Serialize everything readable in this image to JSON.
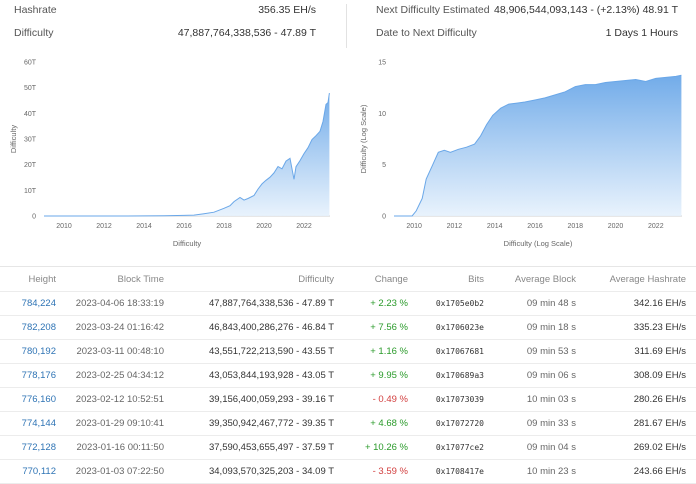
{
  "stats": {
    "hashrate_label": "Hashrate",
    "hashrate_value": "356.35 EH/s",
    "difficulty_label": "Difficulty",
    "difficulty_value": "47,887,764,338,536 - 47.89 T",
    "next_label": "Next Difficulty Estimated",
    "next_value": "48,906,544,093,143 - (+2.13%) 48.91 T",
    "date_label": "Date to Next Difficulty",
    "date_value": "1 Days 1 Hours"
  },
  "colors": {
    "accent": "#2f74b5",
    "area_top": "#6aa7e8",
    "area_bottom": "#e6f1fc",
    "positive": "#2a9a2a",
    "negative": "#d23f3f"
  },
  "chart_data": [
    {
      "type": "area",
      "title": "",
      "xlabel": "Difficulty",
      "ylabel": "Difficulty",
      "xlim": [
        2009,
        2023.3
      ],
      "ylim": [
        0,
        60
      ],
      "y_ticks": [
        0,
        10,
        20,
        30,
        40,
        50,
        60
      ],
      "y_tick_labels": [
        "0",
        "10T",
        "20T",
        "30T",
        "40T",
        "50T",
        "60T"
      ],
      "x_ticks": [
        2010,
        2012,
        2014,
        2016,
        2018,
        2020,
        2022
      ],
      "x_tick_labels": [
        "2010",
        "2012",
        "2014",
        "2016",
        "2018",
        "2020",
        "2022"
      ],
      "grid": false,
      "x": [
        2009,
        2013,
        2014,
        2015,
        2016,
        2016.5,
        2017,
        2017.5,
        2018,
        2018.3,
        2018.5,
        2018.8,
        2019.0,
        2019.2,
        2019.5,
        2019.7,
        2019.9,
        2020.1,
        2020.3,
        2020.5,
        2020.7,
        2020.9,
        2021.1,
        2021.3,
        2021.5,
        2021.6,
        2021.8,
        2022.0,
        2022.2,
        2022.4,
        2022.6,
        2022.8,
        2022.95,
        2023.1,
        2023.2,
        2023.27
      ],
      "y": [
        0,
        0.01,
        0.05,
        0.1,
        0.25,
        0.35,
        0.9,
        1.5,
        3.0,
        4.0,
        5.6,
        7.2,
        6.2,
        6.8,
        8.0,
        10.5,
        12.5,
        13.9,
        15.1,
        16.8,
        19.3,
        18.4,
        21.4,
        22.5,
        14.3,
        19.2,
        21.6,
        24.3,
        26.6,
        29.8,
        31.3,
        33.0,
        36.8,
        43.5,
        44.2,
        47.9
      ]
    },
    {
      "type": "area",
      "title": "",
      "xlabel": "Difficulty (Log Scale)",
      "ylabel": "Difficulty (Log Scale)",
      "xlim": [
        2009,
        2023.3
      ],
      "ylim": [
        0,
        15
      ],
      "y_ticks": [
        0,
        5,
        10,
        15
      ],
      "y_tick_labels": [
        "0",
        "5",
        "10",
        "15"
      ],
      "x_ticks": [
        2010,
        2012,
        2014,
        2016,
        2018,
        2020,
        2022
      ],
      "x_tick_labels": [
        "2010",
        "2012",
        "2014",
        "2016",
        "2018",
        "2020",
        "2022"
      ],
      "grid": false,
      "x": [
        2009,
        2009.9,
        2010.1,
        2010.4,
        2010.6,
        2010.9,
        2011.2,
        2011.5,
        2011.8,
        2012.2,
        2012.6,
        2013.0,
        2013.3,
        2013.6,
        2013.9,
        2014.3,
        2014.7,
        2015.1,
        2015.5,
        2016.0,
        2016.5,
        2017.0,
        2017.5,
        2018.0,
        2018.5,
        2019.0,
        2019.5,
        2020.0,
        2020.5,
        2021.0,
        2021.5,
        2022.0,
        2022.5,
        2023.0,
        2023.27
      ],
      "y": [
        0,
        0,
        0.5,
        1.7,
        3.6,
        4.9,
        6.2,
        6.4,
        6.2,
        6.5,
        6.7,
        7.0,
        7.8,
        8.9,
        9.8,
        10.5,
        10.9,
        11.0,
        11.1,
        11.3,
        11.5,
        11.8,
        12.1,
        12.6,
        12.8,
        12.8,
        13.0,
        13.1,
        13.2,
        13.3,
        13.1,
        13.4,
        13.5,
        13.6,
        13.7
      ]
    }
  ],
  "table": {
    "headers": {
      "height": "Height",
      "time": "Block Time",
      "difficulty": "Difficulty",
      "change": "Change",
      "bits": "Bits",
      "avg_block": "Average Block",
      "avg_hash": "Average Hashrate"
    },
    "rows": [
      {
        "height": "784,224",
        "time": "2023-04-06 18:33:19",
        "difficulty": "47,887,764,338,536 - 47.89 T",
        "change": "+ 2.23 %",
        "change_dir": "pos",
        "bits": "0x1705e0b2",
        "avg_block": "09 min 48 s",
        "avg_hash": "342.16 EH/s"
      },
      {
        "height": "782,208",
        "time": "2023-03-24 01:16:42",
        "difficulty": "46,843,400,286,276 - 46.84 T",
        "change": "+ 7.56 %",
        "change_dir": "pos",
        "bits": "0x1706023e",
        "avg_block": "09 min 18 s",
        "avg_hash": "335.23 EH/s"
      },
      {
        "height": "780,192",
        "time": "2023-03-11 00:48:10",
        "difficulty": "43,551,722,213,590 - 43.55 T",
        "change": "+ 1.16 %",
        "change_dir": "pos",
        "bits": "0x17067681",
        "avg_block": "09 min 53 s",
        "avg_hash": "311.69 EH/s"
      },
      {
        "height": "778,176",
        "time": "2023-02-25 04:34:12",
        "difficulty": "43,053,844,193,928 - 43.05 T",
        "change": "+ 9.95 %",
        "change_dir": "pos",
        "bits": "0x170689a3",
        "avg_block": "09 min 06 s",
        "avg_hash": "308.09 EH/s"
      },
      {
        "height": "776,160",
        "time": "2023-02-12 10:52:51",
        "difficulty": "39,156,400,059,293 - 39.16 T",
        "change": "- 0.49 %",
        "change_dir": "neg",
        "bits": "0x17073039",
        "avg_block": "10 min 03 s",
        "avg_hash": "280.26 EH/s"
      },
      {
        "height": "774,144",
        "time": "2023-01-29 09:10:41",
        "difficulty": "39,350,942,467,772 - 39.35 T",
        "change": "+ 4.68 %",
        "change_dir": "pos",
        "bits": "0x17072720",
        "avg_block": "09 min 33 s",
        "avg_hash": "281.67 EH/s"
      },
      {
        "height": "772,128",
        "time": "2023-01-16 00:11:50",
        "difficulty": "37,590,453,655,497 - 37.59 T",
        "change": "+ 10.26 %",
        "change_dir": "pos",
        "bits": "0x17077ce2",
        "avg_block": "09 min 04 s",
        "avg_hash": "269.02 EH/s"
      },
      {
        "height": "770,112",
        "time": "2023-01-03 07:22:50",
        "difficulty": "34,093,570,325,203 - 34.09 T",
        "change": "- 3.59 %",
        "change_dir": "neg",
        "bits": "0x1708417e",
        "avg_block": "10 min 23 s",
        "avg_hash": "243.66 EH/s"
      }
    ]
  }
}
